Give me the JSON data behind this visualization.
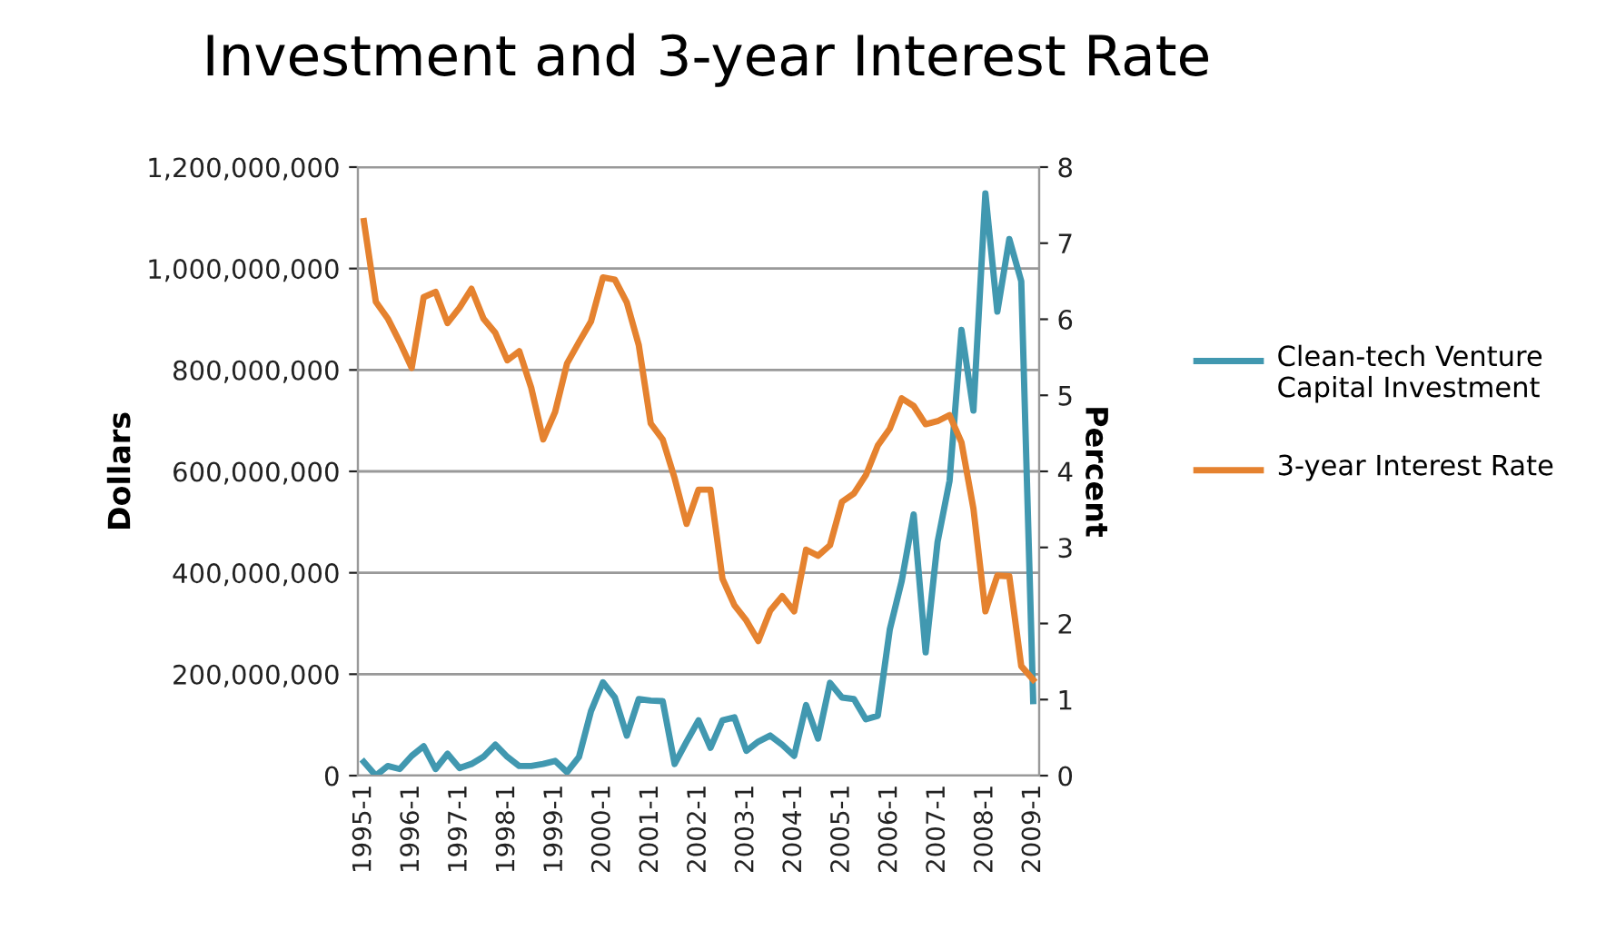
{
  "chart_data": {
    "type": "line",
    "title": "Investment and 3-year Interest Rate",
    "ylabel": "Dollars",
    "y2label": "Percent",
    "categories": [
      "1995-1",
      null,
      null,
      null,
      "1996-1",
      null,
      null,
      null,
      "1997-1",
      null,
      null,
      null,
      "1998-1",
      null,
      null,
      null,
      "1999-1",
      null,
      null,
      null,
      "2000-1",
      null,
      null,
      null,
      "2001-1",
      null,
      null,
      null,
      "2002-1",
      null,
      null,
      null,
      "2003-1",
      null,
      null,
      null,
      "2004-1",
      null,
      null,
      null,
      "2005-1",
      null,
      null,
      null,
      "2006-1",
      null,
      null,
      null,
      "2007-1",
      null,
      null,
      null,
      "2008-1",
      null,
      null,
      null,
      "2009-1"
    ],
    "series": [
      {
        "name": "Clean-tech Venture Capital Investment",
        "color": "#4198b0",
        "values": [
          27000000,
          0,
          19000000,
          13000000,
          39000000,
          58000000,
          13000000,
          43000000,
          15000000,
          23000000,
          37000000,
          61000000,
          37000000,
          19000000,
          19000000,
          23000000,
          29000000,
          7000000,
          37000000,
          127000000,
          184000000,
          154000000,
          79000000,
          151000000,
          148000000,
          147000000,
          23000000,
          67000000,
          109000000,
          55000000,
          109000000,
          115000000,
          49000000,
          67000000,
          79000000,
          61000000,
          39000000,
          139000000,
          73000000,
          183000000,
          154000000,
          151000000,
          111000000,
          118000000,
          288000000,
          384000000,
          515000000,
          243000000,
          461000000,
          581000000,
          879000000,
          720000000,
          1148000000,
          915000000,
          1058000000,
          975000000,
          147000000
        ]
      },
      {
        "name": "3-year Interest Rate",
        "color": "#e5822f",
        "axis": "y2",
        "values": [
          7.29,
          6.23,
          6.01,
          5.7,
          5.36,
          6.29,
          6.36,
          5.95,
          6.15,
          6.4,
          6.01,
          5.82,
          5.46,
          5.58,
          5.1,
          4.42,
          4.78,
          5.42,
          5.7,
          5.97,
          6.55,
          6.52,
          6.22,
          5.66,
          4.63,
          4.42,
          3.91,
          3.31,
          3.76,
          3.76,
          2.59,
          2.24,
          2.04,
          1.77,
          2.17,
          2.36,
          2.16,
          2.97,
          2.89,
          3.03,
          3.6,
          3.71,
          3.95,
          4.34,
          4.56,
          4.96,
          4.86,
          4.62,
          4.66,
          4.74,
          4.38,
          3.51,
          2.16,
          2.63,
          2.62,
          1.44,
          1.26
        ]
      }
    ],
    "ylim": [
      0,
      1200000000
    ],
    "yticks": [
      {
        "value": 0,
        "label": "0"
      },
      {
        "value": 200000000,
        "label": "200,000,000"
      },
      {
        "value": 400000000,
        "label": "400,000,000"
      },
      {
        "value": 600000000,
        "label": "600,000,000"
      },
      {
        "value": 800000000,
        "label": "800,000,000"
      },
      {
        "value": 1000000000,
        "label": "1,000,000,000"
      },
      {
        "value": 1200000000,
        "label": "1,200,000,000"
      }
    ],
    "y2lim": [
      0,
      8
    ],
    "y2ticks": [
      0,
      1,
      2,
      3,
      4,
      5,
      6,
      7,
      8
    ],
    "grid": "y",
    "legend": "right",
    "marker": "none",
    "line_style": "solid"
  }
}
